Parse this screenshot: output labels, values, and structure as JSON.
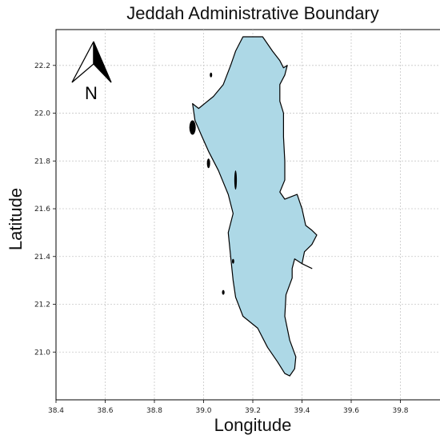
{
  "title": "Jeddah Administrative Boundary",
  "xlabel": "Longitude",
  "ylabel": "Latitude",
  "north_arrow": {
    "letter": "N"
  },
  "colors": {
    "land": "#add8e6",
    "outline": "#000000",
    "grid": "#c8c8c8"
  },
  "chart_data": {
    "type": "map",
    "xlim": [
      38.4,
      40.0
    ],
    "ylim": [
      20.8,
      22.35
    ],
    "xticks": [
      "38.4",
      "38.6",
      "38.8",
      "39.0",
      "39.2",
      "39.4",
      "39.6",
      "39.8"
    ],
    "yticks": [
      "21.0",
      "21.2",
      "21.4",
      "21.6",
      "21.8",
      "22.0",
      "22.2"
    ],
    "grid": true,
    "boundary_lonlat": [
      [
        39.16,
        22.32
      ],
      [
        39.24,
        22.32
      ],
      [
        39.28,
        22.26
      ],
      [
        39.31,
        22.22
      ],
      [
        39.325,
        22.19
      ],
      [
        39.34,
        22.2
      ],
      [
        39.33,
        22.16
      ],
      [
        39.31,
        22.12
      ],
      [
        39.31,
        22.05
      ],
      [
        39.325,
        22.0
      ],
      [
        39.325,
        21.9
      ],
      [
        39.33,
        21.8
      ],
      [
        39.33,
        21.72
      ],
      [
        39.31,
        21.67
      ],
      [
        39.33,
        21.64
      ],
      [
        39.38,
        21.66
      ],
      [
        39.4,
        21.6
      ],
      [
        39.415,
        21.53
      ],
      [
        39.44,
        21.51
      ],
      [
        39.46,
        21.49
      ],
      [
        39.44,
        21.45
      ],
      [
        39.41,
        21.42
      ],
      [
        39.4,
        21.37
      ],
      [
        39.44,
        21.35
      ],
      [
        39.4,
        21.37
      ],
      [
        39.37,
        21.39
      ],
      [
        39.36,
        21.35
      ],
      [
        39.36,
        21.31
      ],
      [
        39.335,
        21.24
      ],
      [
        39.33,
        21.15
      ],
      [
        39.35,
        21.05
      ],
      [
        39.375,
        20.98
      ],
      [
        39.37,
        20.93
      ],
      [
        39.35,
        20.9
      ],
      [
        39.33,
        20.91
      ],
      [
        39.3,
        20.96
      ],
      [
        39.26,
        21.02
      ],
      [
        39.22,
        21.1
      ],
      [
        39.16,
        21.15
      ],
      [
        39.13,
        21.23
      ],
      [
        39.12,
        21.3
      ],
      [
        39.11,
        21.4
      ],
      [
        39.1,
        21.5
      ],
      [
        39.12,
        21.58
      ],
      [
        39.1,
        21.66
      ],
      [
        39.06,
        21.76
      ],
      [
        39.02,
        21.84
      ],
      [
        38.99,
        21.91
      ],
      [
        38.965,
        21.97
      ],
      [
        38.955,
        22.04
      ],
      [
        38.98,
        22.02
      ],
      [
        39.04,
        22.07
      ],
      [
        39.08,
        22.12
      ],
      [
        39.11,
        22.2
      ],
      [
        39.13,
        22.26
      ],
      [
        39.16,
        22.32
      ]
    ]
  }
}
